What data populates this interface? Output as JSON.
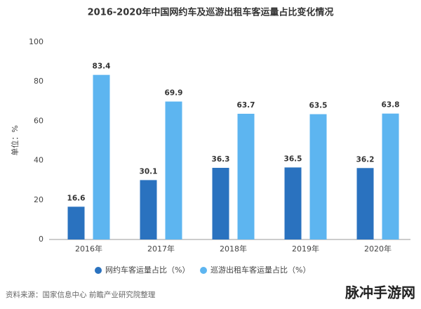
{
  "chart_data": {
    "type": "bar",
    "title": "2016-2020年中国网约车及巡游出租车客运量占比变化情况",
    "y_label": "单位：%",
    "categories": [
      "2016年",
      "2017年",
      "2018年",
      "2019年",
      "2020年"
    ],
    "series": [
      {
        "name": "网约车客运量占比（%）",
        "color": "#2a72bf",
        "values": [
          16.6,
          30.1,
          36.3,
          36.5,
          36.2
        ]
      },
      {
        "name": "巡游出租车客运量占比（%）",
        "color": "#5db5f0",
        "values": [
          83.4,
          69.9,
          63.7,
          63.5,
          63.8
        ]
      }
    ],
    "ylim": [
      0,
      100
    ],
    "yticks": [
      0,
      20,
      40,
      60,
      80,
      100
    ],
    "grid": false,
    "legend": "bottom",
    "source": "资料来源：国家信息中心 前瞻产业研究院整理",
    "watermark": "脉冲手游网"
  }
}
